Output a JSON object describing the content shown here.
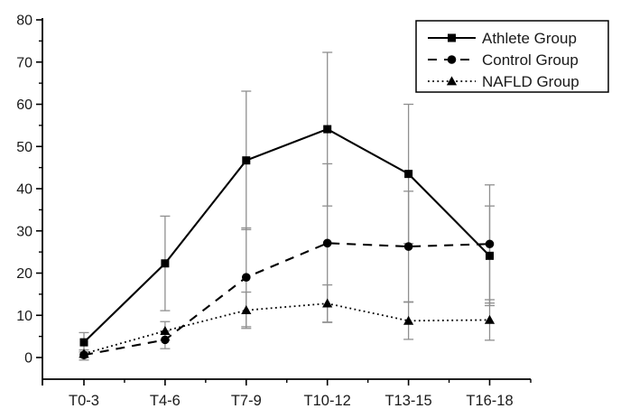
{
  "chart_data": {
    "type": "line",
    "title": "",
    "xlabel": "",
    "ylabel": "",
    "categories": [
      "T0-3",
      "T4-6",
      "T7-9",
      "T10-12",
      "T13-15",
      "T16-18"
    ],
    "series": [
      {
        "name": "Athlete Group",
        "marker": "square",
        "line": "solid",
        "values": [
          3.6,
          22.3,
          46.7,
          54.1,
          43.5,
          24.1
        ],
        "errors": [
          2.3,
          11.2,
          16.4,
          18.2,
          16.5,
          11.8
        ]
      },
      {
        "name": "Control Group",
        "marker": "circle",
        "line": "dashed",
        "values": [
          0.6,
          4.2,
          19.0,
          27.1,
          26.3,
          26.9
        ],
        "errors": [
          1.2,
          2.1,
          11.7,
          18.8,
          13.1,
          14.0
        ]
      },
      {
        "name": "NAFLD Group",
        "marker": "triangle",
        "line": "dotted",
        "values": [
          0.9,
          6.3,
          11.2,
          12.8,
          8.7,
          8.9
        ],
        "errors": [
          0.9,
          2.2,
          4.3,
          4.4,
          4.4,
          4.8
        ]
      }
    ],
    "ylim": [
      0,
      80
    ],
    "y_major_step": 10,
    "y_minor_step": 5,
    "y_tick_labels": [
      "0",
      "10",
      "20",
      "30",
      "40",
      "50",
      "60",
      "70",
      "80"
    ],
    "grid": false,
    "legend_position": "top-right",
    "colors": {
      "line": "#000000",
      "error_bar": "#8f8f8f",
      "text": "#1a1a1a",
      "background": "#ffffff"
    }
  }
}
